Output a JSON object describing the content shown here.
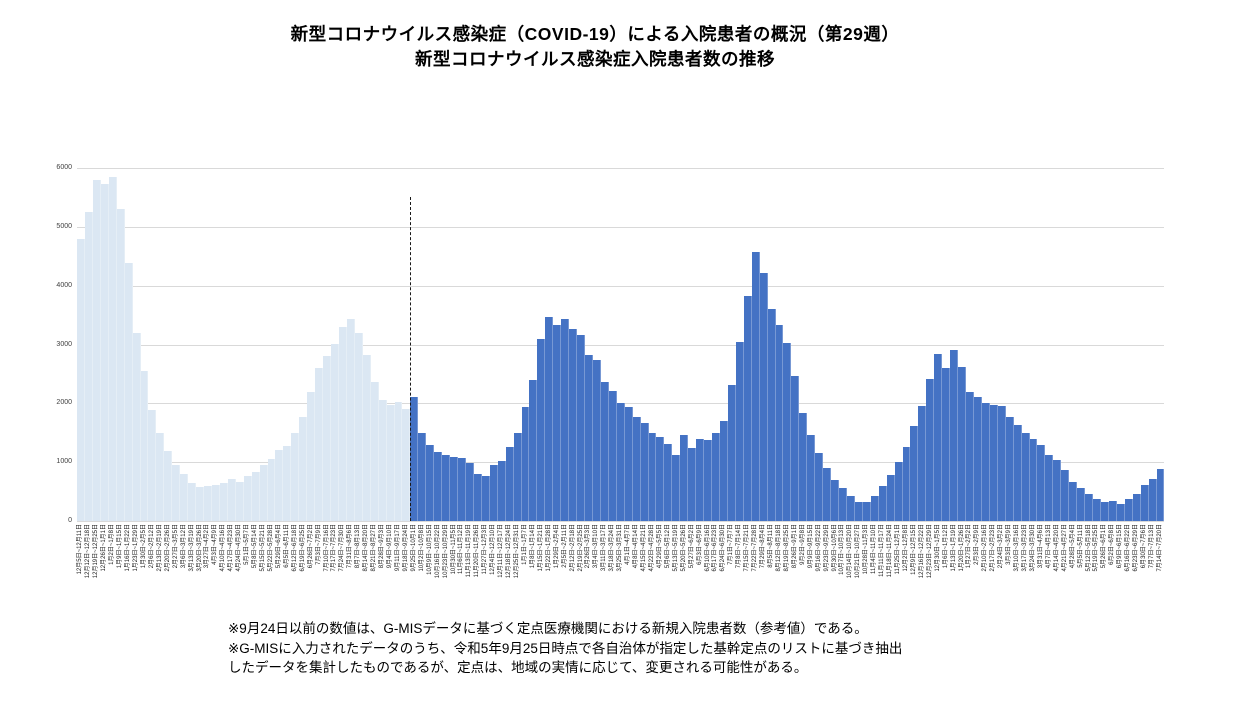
{
  "title": {
    "line1": "新型コロナウイルス感染症（COVID-19）による入院患者の概況（第29週）",
    "line2": "新型コロナウイルス感染症入院患者数の推移"
  },
  "footnotes": {
    "line1": "※9月24日以前の数値は、G-MISデータに基づく定点医療機関における新規入院患者数（参考値）である。",
    "line2": "※G-MISに入力されたデータのうち、令和5年9月25日時点で各自治体が指定した基幹定点のリストに基づき抽出",
    "line3": "したデータを集計したものであるが、定点は、地域の実情に応じて、変更される可能性がある。"
  },
  "chart_data": {
    "type": "bar",
    "title": "新型コロナウイルス感染症入院患者数の推移",
    "xlabel": "",
    "ylabel": "",
    "ylim": [
      0,
      6000
    ],
    "yticks": [
      0,
      1000,
      2000,
      3000,
      4000,
      5000,
      6000
    ],
    "grid": true,
    "legend": "none",
    "split_index": 42,
    "color_before_split": "#dbe7f3",
    "color_after_split": "#4472c4",
    "divider_style": "vertical dashed line at boundary 9月18日~9月24日 / 9月25日~10月1日",
    "categories": [
      "12月5日~12月11日",
      "12月12日~12月18日",
      "12月19日~12月25日",
      "12月26日~1月1日",
      "1月2日~1月8日",
      "1月9日~1月15日",
      "1月16日~1月22日",
      "1月23日~1月29日",
      "1月30日~2月5日",
      "2月6日~2月12日",
      "2月13日~2月19日",
      "2月20日~2月26日",
      "2月27日~3月5日",
      "3月6日~3月12日",
      "3月13日~3月19日",
      "3月20日~3月26日",
      "3月27日~4月2日",
      "4月3日~4月9日",
      "4月10日~4月16日",
      "4月17日~4月23日",
      "4月24日~4月30日",
      "5月1日~5月7日",
      "5月8日~5月14日",
      "5月15日~5月21日",
      "5月22日~5月28日",
      "5月29日~6月4日",
      "6月5日~6月11日",
      "6月12日~6月18日",
      "6月19日~6月25日",
      "6月26日~7月2日",
      "7月3日~7月9日",
      "7月10日~7月16日",
      "7月17日~7月23日",
      "7月24日~7月30日",
      "7月31日~8月6日",
      "8月7日~8月13日",
      "8月14日~8月20日",
      "8月21日~8月27日",
      "8月28日~9月3日",
      "9月4日~9月10日",
      "9月11日~9月17日",
      "9月18日~9月24日",
      "9月25日~10月1日",
      "10月2日~10月8日",
      "10月9日~10月15日",
      "10月16日~10月22日",
      "10月23日~10月29日",
      "10月30日~11月5日",
      "11月6日~11月12日",
      "11月13日~11月19日",
      "11月20日~11月26日",
      "11月27日~12月3日",
      "12月4日~12月10日",
      "12月11日~12月17日",
      "12月18日~12月24日",
      "12月25日~12月31日",
      "1月1日~1月7日",
      "1月8日~1月14日",
      "1月15日~1月21日",
      "1月22日~1月28日",
      "1月29日~2月4日",
      "2月5日~2月11日",
      "2月12日~2月18日",
      "2月19日~2月25日",
      "2月26日~3月3日",
      "3月4日~3月10日",
      "3月11日~3月17日",
      "3月18日~3月24日",
      "3月25日~3月31日",
      "4月1日~4月7日",
      "4月8日~4月14日",
      "4月15日~4月21日",
      "4月22日~4月28日",
      "4月29日~5月5日",
      "5月6日~5月12日",
      "5月13日~5月19日",
      "5月20日~5月26日",
      "5月27日~6月2日",
      "6月3日~6月9日",
      "6月10日~6月16日",
      "6月17日~6月23日",
      "6月24日~6月30日",
      "7月1日~7月7日",
      "7月8日~7月14日",
      "7月15日~7月21日",
      "7月22日~7月28日",
      "7月29日~8月4日",
      "8月5日~8月11日",
      "8月12日~8月18日",
      "8月19日~8月25日",
      "8月26日~9月1日",
      "9月2日~9月8日",
      "9月9日~9月15日",
      "9月16日~9月22日",
      "9月23日~9月29日",
      "9月30日~10月6日",
      "10月7日~10月13日",
      "10月14日~10月20日",
      "10月21日~10月27日",
      "10月28日~11月3日",
      "11月4日~11月10日",
      "11月11日~11月17日",
      "11月18日~11月24日",
      "11月25日~12月1日",
      "12月2日~12月8日",
      "12月9日~12月15日",
      "12月16日~12月22日",
      "12月23日~12月29日",
      "12月30日~1月5日",
      "1月6日~1月12日",
      "1月13日~1月19日",
      "1月20日~1月26日",
      "1月27日~2月2日",
      "2月3日~2月9日",
      "2月10日~2月16日",
      "2月17日~2月23日",
      "2月24日~3月2日",
      "3月3日~3月9日",
      "3月10日~3月16日",
      "3月17日~3月23日",
      "3月24日~3月30日",
      "3月31日~4月6日",
      "4月7日~4月13日",
      "4月14日~4月20日",
      "4月21日~4月27日",
      "4月28日~5月4日",
      "5月5日~5月11日",
      "5月12日~5月18日",
      "5月19日~5月25日",
      "5月26日~6月1日",
      "6月2日~6月8日",
      "6月9日~6月15日",
      "6月16日~6月22日",
      "6月23日~6月29日",
      "6月30日~7月6日",
      "7月7日~7月13日",
      "7月14日~7月20日"
    ],
    "values": [
      4800,
      5250,
      5800,
      5720,
      5850,
      5300,
      4380,
      3200,
      2550,
      1880,
      1500,
      1190,
      950,
      800,
      640,
      570,
      600,
      620,
      650,
      710,
      660,
      770,
      830,
      960,
      1060,
      1200,
      1270,
      1500,
      1760,
      2200,
      2600,
      2800,
      3010,
      3300,
      3430,
      3200,
      2820,
      2370,
      2060,
      1980,
      2020,
      1900,
      2100,
      1500,
      1300,
      1180,
      1130,
      1090,
      1075,
      990,
      800,
      760,
      960,
      1020,
      1250,
      1500,
      1930,
      2400,
      3100,
      3470,
      3330,
      3430,
      3270,
      3170,
      2820,
      2730,
      2360,
      2210,
      2000,
      1930,
      1760,
      1660,
      1500,
      1430,
      1310,
      1130,
      1460,
      1240,
      1390,
      1370,
      1490,
      1700,
      2310,
      3050,
      3830,
      4570,
      4210,
      3600,
      3340,
      3030,
      2460,
      1830,
      1460,
      1150,
      900,
      700,
      560,
      430,
      330,
      320,
      430,
      600,
      780,
      1000,
      1250,
      1610,
      1960,
      2410,
      2840,
      2600,
      2910,
      2620,
      2200,
      2100,
      2010,
      1980,
      1950,
      1770,
      1640,
      1495,
      1390,
      1295,
      1130,
      1035,
      875,
      660,
      565,
      460,
      375,
      315,
      345,
      290,
      375,
      460,
      610,
      715,
      880
    ]
  }
}
